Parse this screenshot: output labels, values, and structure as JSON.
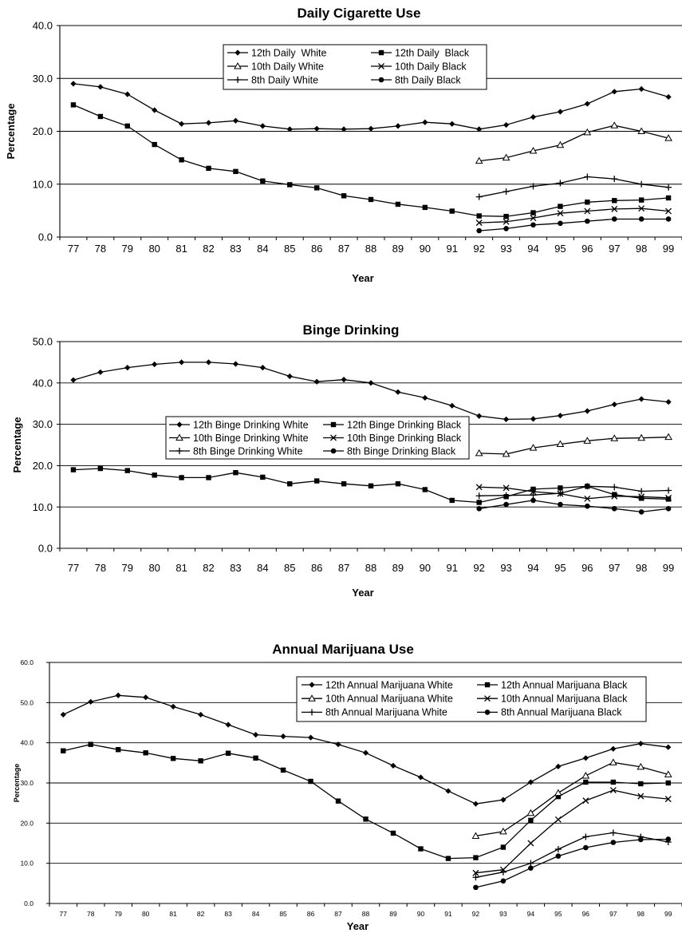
{
  "chart_data": [
    {
      "type": "line",
      "title": "Daily Cigarette Use",
      "xlabel": "Year",
      "ylabel": "Percentage",
      "ylim": [
        0,
        40
      ],
      "yticks": [
        "0.0",
        "10.0",
        "20.0",
        "30.0",
        "40.0"
      ],
      "grid": "horizontal",
      "legend_position": "top-center",
      "categories": [
        "77",
        "78",
        "79",
        "80",
        "81",
        "82",
        "83",
        "84",
        "85",
        "86",
        "87",
        "88",
        "89",
        "90",
        "91",
        "92",
        "93",
        "94",
        "95",
        "96",
        "97",
        "98",
        "99"
      ],
      "series": [
        {
          "name": "12th Daily  White",
          "marker": "diamond",
          "values": [
            29.0,
            28.4,
            27.0,
            24.0,
            21.4,
            21.6,
            22.0,
            21.0,
            20.4,
            20.5,
            20.4,
            20.5,
            21.0,
            21.7,
            21.4,
            20.4,
            21.2,
            22.7,
            23.7,
            25.2,
            27.5,
            28.0,
            26.5
          ]
        },
        {
          "name": "12th Daily  Black",
          "marker": "square",
          "values": [
            25.0,
            22.8,
            21.0,
            17.5,
            14.6,
            13.0,
            12.4,
            10.6,
            9.9,
            9.3,
            7.8,
            7.1,
            6.2,
            5.6,
            4.9,
            4.0,
            3.9,
            4.6,
            5.8,
            6.6,
            6.9,
            7.0,
            7.4
          ]
        },
        {
          "name": "10th Daily White",
          "marker": "triangle",
          "values": [
            null,
            null,
            null,
            null,
            null,
            null,
            null,
            null,
            null,
            null,
            null,
            null,
            null,
            null,
            null,
            14.4,
            15.0,
            16.3,
            17.4,
            19.8,
            21.1,
            20.0,
            18.7
          ]
        },
        {
          "name": "10th Daily Black",
          "marker": "x",
          "values": [
            null,
            null,
            null,
            null,
            null,
            null,
            null,
            null,
            null,
            null,
            null,
            null,
            null,
            null,
            null,
            2.7,
            2.9,
            3.6,
            4.5,
            4.9,
            5.3,
            5.4,
            4.9
          ]
        },
        {
          "name": "8th Daily White",
          "marker": "plus",
          "values": [
            null,
            null,
            null,
            null,
            null,
            null,
            null,
            null,
            null,
            null,
            null,
            null,
            null,
            null,
            null,
            7.6,
            8.6,
            9.6,
            10.2,
            11.4,
            11.0,
            10.0,
            9.4
          ]
        },
        {
          "name": "8th Daily Black",
          "marker": "circle",
          "values": [
            null,
            null,
            null,
            null,
            null,
            null,
            null,
            null,
            null,
            null,
            null,
            null,
            null,
            null,
            null,
            1.2,
            1.6,
            2.3,
            2.6,
            3.0,
            3.4,
            3.4,
            3.4
          ]
        }
      ]
    },
    {
      "type": "line",
      "title": "Binge Drinking",
      "xlabel": "Year",
      "ylabel": "Percentage",
      "ylim": [
        0,
        50
      ],
      "yticks": [
        "0.0",
        "10.0",
        "20.0",
        "30.0",
        "40.0",
        "50.0"
      ],
      "grid": "horizontal",
      "legend_position": "center",
      "categories": [
        "77",
        "78",
        "79",
        "80",
        "81",
        "82",
        "83",
        "84",
        "85",
        "86",
        "87",
        "88",
        "89",
        "90",
        "91",
        "92",
        "93",
        "94",
        "95",
        "96",
        "97",
        "98",
        "99"
      ],
      "series": [
        {
          "name": "12th Binge Drinking White",
          "marker": "diamond",
          "values": [
            40.7,
            42.6,
            43.7,
            44.5,
            45.0,
            45.0,
            44.6,
            43.7,
            41.6,
            40.3,
            40.8,
            40.0,
            37.8,
            36.4,
            34.5,
            32.0,
            31.2,
            31.3,
            32.1,
            33.2,
            34.8,
            36.1,
            35.4
          ]
        },
        {
          "name": "12th Binge Drinking Black",
          "marker": "square",
          "values": [
            19.0,
            19.3,
            18.8,
            17.7,
            17.1,
            17.1,
            18.3,
            17.2,
            15.6,
            16.3,
            15.6,
            15.1,
            15.6,
            14.2,
            11.6,
            11.1,
            12.5,
            14.3,
            14.6,
            15.0,
            13.0,
            12.1,
            11.9
          ]
        },
        {
          "name": "10th Binge Drinking White",
          "marker": "triangle",
          "values": [
            null,
            null,
            null,
            null,
            null,
            null,
            null,
            null,
            null,
            null,
            null,
            null,
            null,
            null,
            null,
            23.0,
            22.8,
            24.3,
            25.2,
            26.0,
            26.6,
            26.7,
            26.9
          ]
        },
        {
          "name": "10th Binge Drinking Black",
          "marker": "x",
          "values": [
            null,
            null,
            null,
            null,
            null,
            null,
            null,
            null,
            null,
            null,
            null,
            null,
            null,
            null,
            null,
            14.8,
            14.6,
            13.7,
            13.2,
            12.0,
            12.6,
            12.5,
            12.2
          ]
        },
        {
          "name": "8th Binge Drinking White",
          "marker": "plus",
          "values": [
            null,
            null,
            null,
            null,
            null,
            null,
            null,
            null,
            null,
            null,
            null,
            null,
            null,
            null,
            null,
            12.7,
            12.8,
            12.9,
            13.3,
            15.0,
            14.8,
            13.8,
            14.0
          ]
        },
        {
          "name": "8th Binge Drinking Black",
          "marker": "circle",
          "values": [
            null,
            null,
            null,
            null,
            null,
            null,
            null,
            null,
            null,
            null,
            null,
            null,
            null,
            null,
            null,
            9.6,
            10.6,
            11.6,
            10.6,
            10.2,
            9.6,
            8.8,
            9.6
          ]
        }
      ]
    },
    {
      "type": "line",
      "title": "Annual Marijuana Use",
      "xlabel": "Year",
      "ylabel": "Percentage",
      "ylim": [
        0,
        60
      ],
      "yticks": [
        "0.0",
        "10.0",
        "20.0",
        "30.0",
        "40.0",
        "50.0",
        "60.0"
      ],
      "grid": "horizontal",
      "legend_position": "top-right",
      "categories": [
        "77",
        "78",
        "79",
        "80",
        "81",
        "82",
        "83",
        "84",
        "85",
        "86",
        "87",
        "88",
        "89",
        "90",
        "91",
        "92",
        "93",
        "94",
        "95",
        "96",
        "97",
        "98",
        "99"
      ],
      "series": [
        {
          "name": "12th Annual Marijuana White",
          "marker": "diamond",
          "values": [
            47.0,
            50.2,
            51.8,
            51.3,
            49.0,
            47.0,
            44.5,
            42.0,
            41.6,
            41.3,
            39.6,
            37.5,
            34.3,
            31.4,
            28.0,
            24.8,
            25.8,
            30.2,
            34.1,
            36.2,
            38.5,
            39.8,
            38.9
          ]
        },
        {
          "name": "12th Annual Marijuana Black",
          "marker": "square",
          "values": [
            38.0,
            39.6,
            38.3,
            37.5,
            36.1,
            35.5,
            37.4,
            36.2,
            33.2,
            30.4,
            25.5,
            21.0,
            17.5,
            13.6,
            11.2,
            11.4,
            14.0,
            20.7,
            26.6,
            30.2,
            30.2,
            29.8,
            30.0
          ]
        },
        {
          "name": "10th Annual Marijuana White",
          "marker": "triangle",
          "values": [
            null,
            null,
            null,
            null,
            null,
            null,
            null,
            null,
            null,
            null,
            null,
            null,
            null,
            null,
            null,
            16.8,
            17.9,
            22.5,
            27.5,
            31.8,
            35.1,
            34.0,
            32.1
          ]
        },
        {
          "name": "10th Annual Marijuana Black",
          "marker": "x",
          "values": [
            null,
            null,
            null,
            null,
            null,
            null,
            null,
            null,
            null,
            null,
            null,
            null,
            null,
            null,
            null,
            7.6,
            8.4,
            15.0,
            20.9,
            25.6,
            28.2,
            26.7,
            26.0
          ]
        },
        {
          "name": "8th Annual Marijuana White",
          "marker": "plus",
          "values": [
            null,
            null,
            null,
            null,
            null,
            null,
            null,
            null,
            null,
            null,
            null,
            null,
            null,
            null,
            null,
            6.5,
            7.8,
            10.0,
            13.5,
            16.6,
            17.6,
            16.6,
            15.3
          ]
        },
        {
          "name": "8th Annual Marijuana Black",
          "marker": "circle",
          "values": [
            null,
            null,
            null,
            null,
            null,
            null,
            null,
            null,
            null,
            null,
            null,
            null,
            null,
            null,
            null,
            4.0,
            5.6,
            8.8,
            11.8,
            13.9,
            15.2,
            15.9,
            16.0
          ]
        }
      ]
    }
  ]
}
